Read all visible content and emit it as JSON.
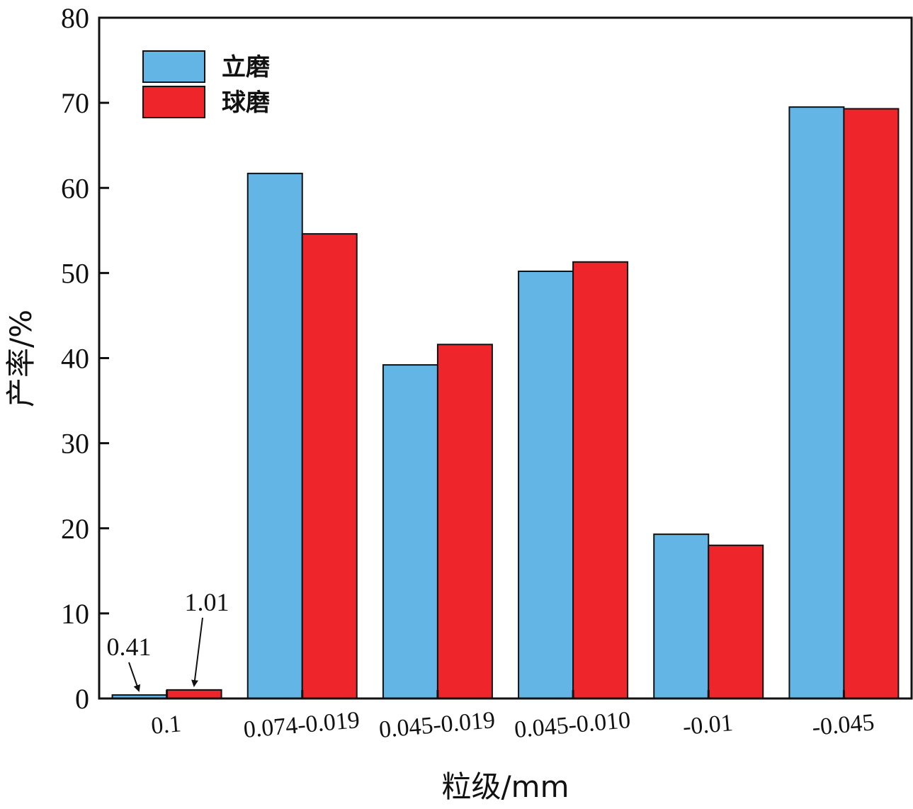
{
  "chart_data": {
    "type": "bar",
    "title": "",
    "xlabel": "粒级/mm",
    "ylabel": "产率/%",
    "ylim": [
      0,
      80
    ],
    "yticks": [
      0,
      10,
      20,
      30,
      40,
      50,
      60,
      70,
      80
    ],
    "categories": [
      "0.1",
      "0.074-0.019",
      "0.045-0.019",
      "0.045-0.010",
      "-0.01",
      "-0.045"
    ],
    "series": [
      {
        "name": "立磨",
        "color": "#63b5e6",
        "values": [
          0.41,
          61.7,
          39.2,
          50.2,
          19.3,
          69.5
        ]
      },
      {
        "name": "球磨",
        "color": "#ee262c",
        "values": [
          1.01,
          54.6,
          41.6,
          51.3,
          18.0,
          69.3
        ]
      }
    ],
    "annotations": [
      {
        "text": "0.41",
        "series": 0,
        "category": 0
      },
      {
        "text": "1.01",
        "series": 1,
        "category": 0
      }
    ],
    "legend": "top-left",
    "grid": false
  }
}
